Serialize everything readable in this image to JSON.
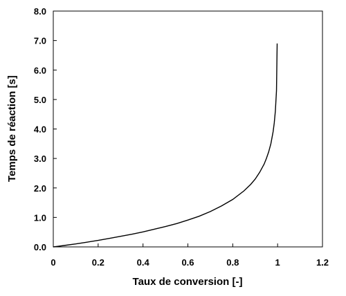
{
  "chart_data": {
    "type": "line",
    "title": "",
    "xlabel": "Taux de conversion [-]",
    "ylabel": "Temps de réaction [s]",
    "xlim": [
      0,
      1.2
    ],
    "ylim": [
      0,
      8
    ],
    "x_ticks": [
      0,
      0.2,
      0.4,
      0.6,
      0.8,
      1,
      1.2
    ],
    "x_tick_labels": [
      "0",
      "0.2",
      "0.4",
      "0.6",
      "0.8",
      "1",
      "1.2"
    ],
    "y_ticks": [
      0,
      1,
      2,
      3,
      4,
      5,
      6,
      7,
      8
    ],
    "y_tick_labels": [
      "0.0",
      "1.0",
      "2.0",
      "3.0",
      "4.0",
      "5.0",
      "6.0",
      "7.0",
      "8.0"
    ],
    "grid": false,
    "legend": "none",
    "line_color": "#000000",
    "series": [
      {
        "x": [
          0,
          0.02,
          0.05,
          0.1,
          0.15,
          0.2,
          0.25,
          0.3,
          0.35,
          0.4,
          0.45,
          0.5,
          0.55,
          0.6,
          0.65,
          0.7,
          0.75,
          0.8,
          0.85,
          0.88,
          0.9,
          0.92,
          0.94,
          0.95,
          0.96,
          0.97,
          0.98,
          0.985,
          0.99,
          0.995,
          0.998
        ],
        "y": [
          0,
          0.02,
          0.05,
          0.1,
          0.16,
          0.22,
          0.29,
          0.36,
          0.43,
          0.51,
          0.6,
          0.69,
          0.79,
          0.91,
          1.04,
          1.2,
          1.39,
          1.61,
          1.9,
          2.12,
          2.3,
          2.53,
          2.81,
          3.0,
          3.22,
          3.5,
          3.91,
          4.2,
          4.61,
          5.3,
          6.9
        ]
      }
    ]
  }
}
